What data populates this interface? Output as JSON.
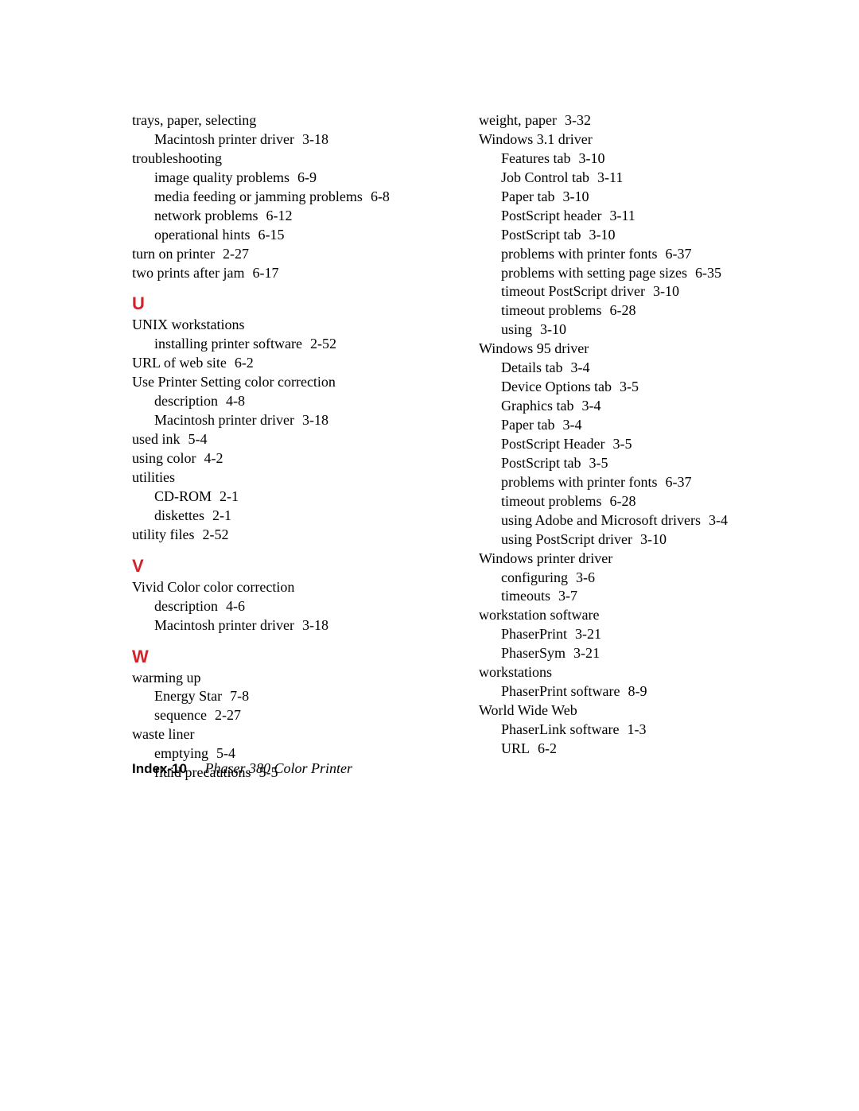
{
  "left": {
    "pre": [
      {
        "t": "trays, paper, selecting",
        "lvl": 0
      },
      {
        "t": "Macintosh printer driver",
        "p": "3-18",
        "lvl": 1
      },
      {
        "t": "troubleshooting",
        "lvl": 0
      },
      {
        "t": "image quality problems",
        "p": "6-9",
        "lvl": 1
      },
      {
        "t": "media feeding or jamming problems",
        "p": "6-8",
        "lvl": 1
      },
      {
        "t": "network problems",
        "p": "6-12",
        "lvl": 1
      },
      {
        "t": "operational hints",
        "p": "6-15",
        "lvl": 1
      },
      {
        "t": "turn on printer",
        "p": "2-27",
        "lvl": 0
      },
      {
        "t": "two prints after jam",
        "p": "6-17",
        "lvl": 0
      }
    ],
    "sections": [
      {
        "letter": "U",
        "entries": [
          {
            "t": "UNIX workstations",
            "lvl": 0
          },
          {
            "t": "installing printer software",
            "p": "2-52",
            "lvl": 1
          },
          {
            "t": "URL of web site",
            "p": "6-2",
            "lvl": 0
          },
          {
            "t": "Use Printer Setting color correction",
            "lvl": 0
          },
          {
            "t": "description",
            "p": "4-8",
            "lvl": 1
          },
          {
            "t": "Macintosh printer driver",
            "p": "3-18",
            "lvl": 1
          },
          {
            "t": "used ink",
            "p": "5-4",
            "lvl": 0
          },
          {
            "t": "using color",
            "p": "4-2",
            "lvl": 0
          },
          {
            "t": "utilities",
            "lvl": 0
          },
          {
            "t": "CD-ROM",
            "p": "2-1",
            "lvl": 1
          },
          {
            "t": "diskettes",
            "p": "2-1",
            "lvl": 1
          },
          {
            "t": "utility files",
            "p": "2-52",
            "lvl": 0
          }
        ]
      },
      {
        "letter": "V",
        "entries": [
          {
            "t": "Vivid Color color correction",
            "lvl": 0
          },
          {
            "t": "description",
            "p": "4-6",
            "lvl": 1
          },
          {
            "t": "Macintosh printer driver",
            "p": "3-18",
            "lvl": 1
          }
        ]
      },
      {
        "letter": "W",
        "entries": [
          {
            "t": "warming up",
            "lvl": 0
          },
          {
            "t": "Energy Star",
            "p": "7-8",
            "lvl": 1
          },
          {
            "t": "sequence",
            "p": "2-27",
            "lvl": 1
          },
          {
            "t": "waste liner",
            "lvl": 0
          },
          {
            "t": "emptying",
            "p": "5-4",
            "lvl": 1
          },
          {
            "t": "fluid precautions",
            "p": "5-5",
            "lvl": 1
          }
        ]
      }
    ]
  },
  "right": {
    "entries": [
      {
        "t": "weight, paper",
        "p": "3-32",
        "lvl": 0
      },
      {
        "t": "Windows 3.1 driver",
        "lvl": 0
      },
      {
        "t": "Features tab",
        "p": "3-10",
        "lvl": 1
      },
      {
        "t": "Job Control tab",
        "p": "3-11",
        "lvl": 1
      },
      {
        "t": "Paper tab",
        "p": "3-10",
        "lvl": 1
      },
      {
        "t": "PostScript header",
        "p": "3-11",
        "lvl": 1
      },
      {
        "t": "PostScript tab",
        "p": "3-10",
        "lvl": 1
      },
      {
        "t": "problems with printer fonts",
        "p": "6-37",
        "lvl": 1
      },
      {
        "t": "problems with setting page sizes",
        "p": "6-35",
        "lvl": 1
      },
      {
        "t": "timeout PostScript driver",
        "p": "3-10",
        "lvl": 1
      },
      {
        "t": "timeout problems",
        "p": "6-28",
        "lvl": 1
      },
      {
        "t": "using",
        "p": "3-10",
        "lvl": 1
      },
      {
        "t": "Windows 95 driver",
        "lvl": 0
      },
      {
        "t": "Details tab",
        "p": "3-4",
        "lvl": 1
      },
      {
        "t": "Device Options tab",
        "p": "3-5",
        "lvl": 1
      },
      {
        "t": "Graphics tab",
        "p": "3-4",
        "lvl": 1
      },
      {
        "t": "Paper tab",
        "p": "3-4",
        "lvl": 1
      },
      {
        "t": "PostScript Header",
        "p": "3-5",
        "lvl": 1
      },
      {
        "t": "PostScript tab",
        "p": "3-5",
        "lvl": 1
      },
      {
        "t": "problems with printer fonts",
        "p": "6-37",
        "lvl": 1
      },
      {
        "t": "timeout problems",
        "p": "6-28",
        "lvl": 1
      },
      {
        "t": "using Adobe and Microsoft drivers",
        "p": "3-4",
        "lvl": 1
      },
      {
        "t": "using PostScript driver",
        "p": "3-10",
        "lvl": 1
      },
      {
        "t": "Windows printer driver",
        "lvl": 0
      },
      {
        "t": "configuring",
        "p": "3-6",
        "lvl": 1
      },
      {
        "t": "timeouts",
        "p": "3-7",
        "lvl": 1
      },
      {
        "t": "workstation software",
        "lvl": 0
      },
      {
        "t": "PhaserPrint",
        "p": "3-21",
        "lvl": 1
      },
      {
        "t": "PhaserSym",
        "p": "3-21",
        "lvl": 1
      },
      {
        "t": "workstations",
        "lvl": 0
      },
      {
        "t": "PhaserPrint software",
        "p": "8-9",
        "lvl": 1
      },
      {
        "t": "World Wide Web",
        "lvl": 0
      },
      {
        "t": "PhaserLink software",
        "p": "1-3",
        "lvl": 1
      },
      {
        "t": "URL",
        "p": "6-2",
        "lvl": 1
      }
    ]
  },
  "footer": {
    "index": "Index-10",
    "title": "Phaser 380 Color Printer"
  },
  "colors": {
    "accent": "#d2232a",
    "text": "#000000",
    "background": "#ffffff"
  }
}
